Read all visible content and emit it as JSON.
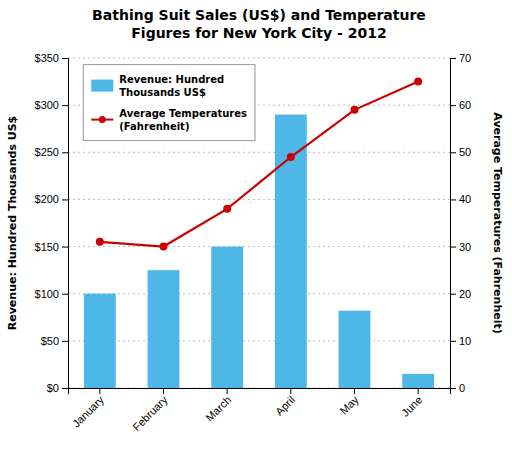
{
  "chart_data": {
    "type": "bar",
    "title": "Bathing Suit Sales (US$) and Temperature\nFigures for New York City - 2012",
    "categories": [
      "January",
      "February",
      "March",
      "April",
      "May",
      "June"
    ],
    "series": [
      {
        "name": "Revenue: Hundred\nThousands US$",
        "type": "bar",
        "color": "#4db8e8",
        "values": [
          100,
          125,
          150,
          290,
          82,
          15
        ]
      },
      {
        "name": "Average Temperatures\n(Fahrenheit)",
        "type": "line",
        "color": "#cc0000",
        "marker": "circle",
        "axis": "y2",
        "values": [
          31,
          30,
          38,
          49,
          59,
          65
        ]
      }
    ],
    "ylabel": "Revenue: Hundred Thousands US$",
    "y2label": "Average Temperatures (Fahrenheit)",
    "ylim": [
      0,
      350
    ],
    "yticks": [
      {
        "value": 0,
        "label": "$0"
      },
      {
        "value": 50,
        "label": "$50"
      },
      {
        "value": 100,
        "label": "$100"
      },
      {
        "value": 150,
        "label": "$150"
      },
      {
        "value": 200,
        "label": "$200"
      },
      {
        "value": 250,
        "label": "$250"
      },
      {
        "value": 300,
        "label": "$300"
      },
      {
        "value": 350,
        "label": "$350"
      }
    ],
    "y2lim": [
      0,
      70
    ],
    "y2ticks": [
      0,
      10,
      20,
      30,
      40,
      50,
      60,
      70
    ],
    "grid": true,
    "legend": "upper left"
  }
}
